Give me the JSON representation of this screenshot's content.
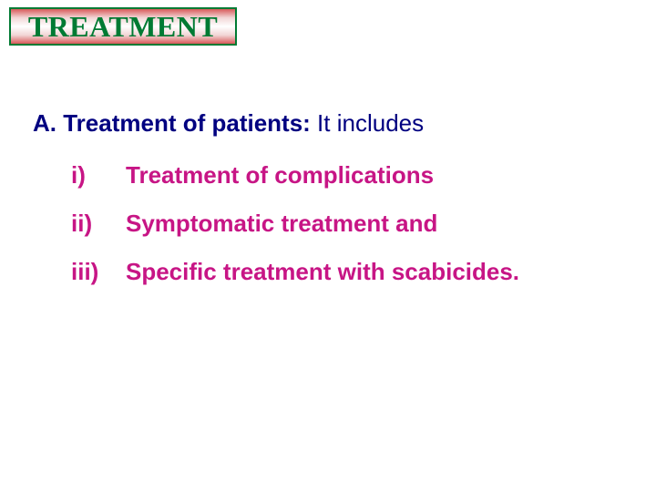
{
  "colors": {
    "background": "#ffffff",
    "title_text": "#007a33",
    "title_border": "#007a33",
    "body_navy": "#000080",
    "body_magenta": "#c71585"
  },
  "title": "TREATMENT",
  "lineA": {
    "marker": "A.",
    "bold": "Treatment of patients:",
    "tail": " It includes"
  },
  "items": [
    {
      "roman": "i)",
      "text": "Treatment of complications"
    },
    {
      "roman": "ii)",
      "text": "Symptomatic treatment and"
    },
    {
      "roman": "iii)",
      "text": "Specific treatment with scabicides."
    }
  ]
}
